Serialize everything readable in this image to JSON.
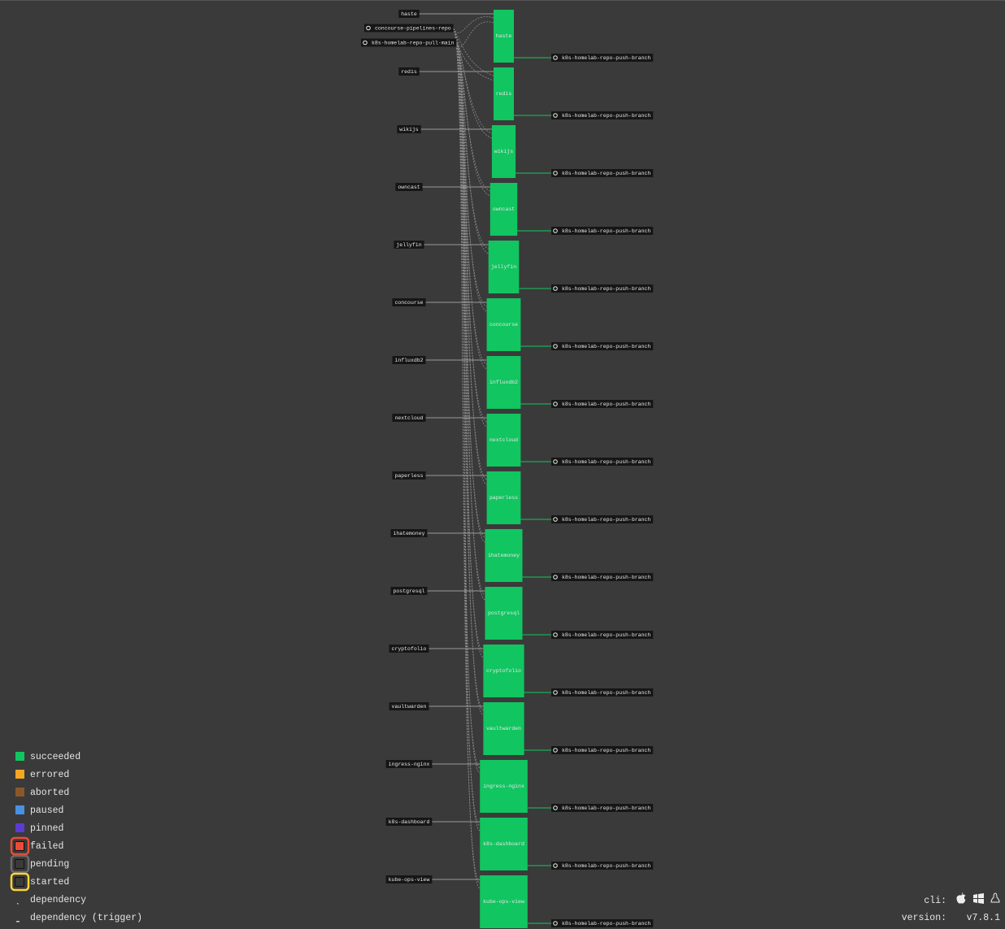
{
  "inputs": [
    "concourse-pipelines-repo",
    "k8s-homelab-repo-pull-main"
  ],
  "jobs": [
    {
      "name": "haste",
      "input": "haste",
      "output": "k8s-homelab-repo-push-branch"
    },
    {
      "name": "redis",
      "input": "redis",
      "output": "k8s-homelab-repo-push-branch"
    },
    {
      "name": "wikijs",
      "input": "wikijs",
      "output": "k8s-homelab-repo-push-branch"
    },
    {
      "name": "owncast",
      "input": "owncast",
      "output": "k8s-homelab-repo-push-branch"
    },
    {
      "name": "jellyfin",
      "input": "jellyfin",
      "output": "k8s-homelab-repo-push-branch"
    },
    {
      "name": "concourse",
      "input": "concourse",
      "output": "k8s-homelab-repo-push-branch"
    },
    {
      "name": "influxdb2",
      "input": "influxdb2",
      "output": "k8s-homelab-repo-push-branch"
    },
    {
      "name": "nextcloud",
      "input": "nextcloud",
      "output": "k8s-homelab-repo-push-branch"
    },
    {
      "name": "paperless",
      "input": "paperless",
      "output": "k8s-homelab-repo-push-branch"
    },
    {
      "name": "ihatemoney",
      "input": "ihatemoney",
      "output": "k8s-homelab-repo-push-branch"
    },
    {
      "name": "postgresql",
      "input": "postgresql",
      "output": "k8s-homelab-repo-push-branch"
    },
    {
      "name": "cryptofolio",
      "input": "cryptofolio",
      "output": "k8s-homelab-repo-push-branch"
    },
    {
      "name": "vaultwarden",
      "input": "vaultwarden",
      "output": "k8s-homelab-repo-push-branch"
    },
    {
      "name": "ingress-nginx",
      "input": "ingress-nginx",
      "output": "k8s-homelab-repo-push-branch"
    },
    {
      "name": "k8s-dashboard",
      "input": "k8s-dashboard",
      "output": "k8s-homelab-repo-push-branch"
    },
    {
      "name": "kube-ops-view",
      "input": "kube-ops-view",
      "output": "k8s-homelab-repo-push-branch"
    }
  ],
  "legend": [
    "succeeded",
    "errored",
    "aborted",
    "paused",
    "pinned",
    "failed",
    "pending",
    "started",
    "dependency",
    "dependency (trigger)"
  ],
  "footer": {
    "cli_label": "cli:",
    "version_label": "version:",
    "version": "v7.8.1"
  }
}
